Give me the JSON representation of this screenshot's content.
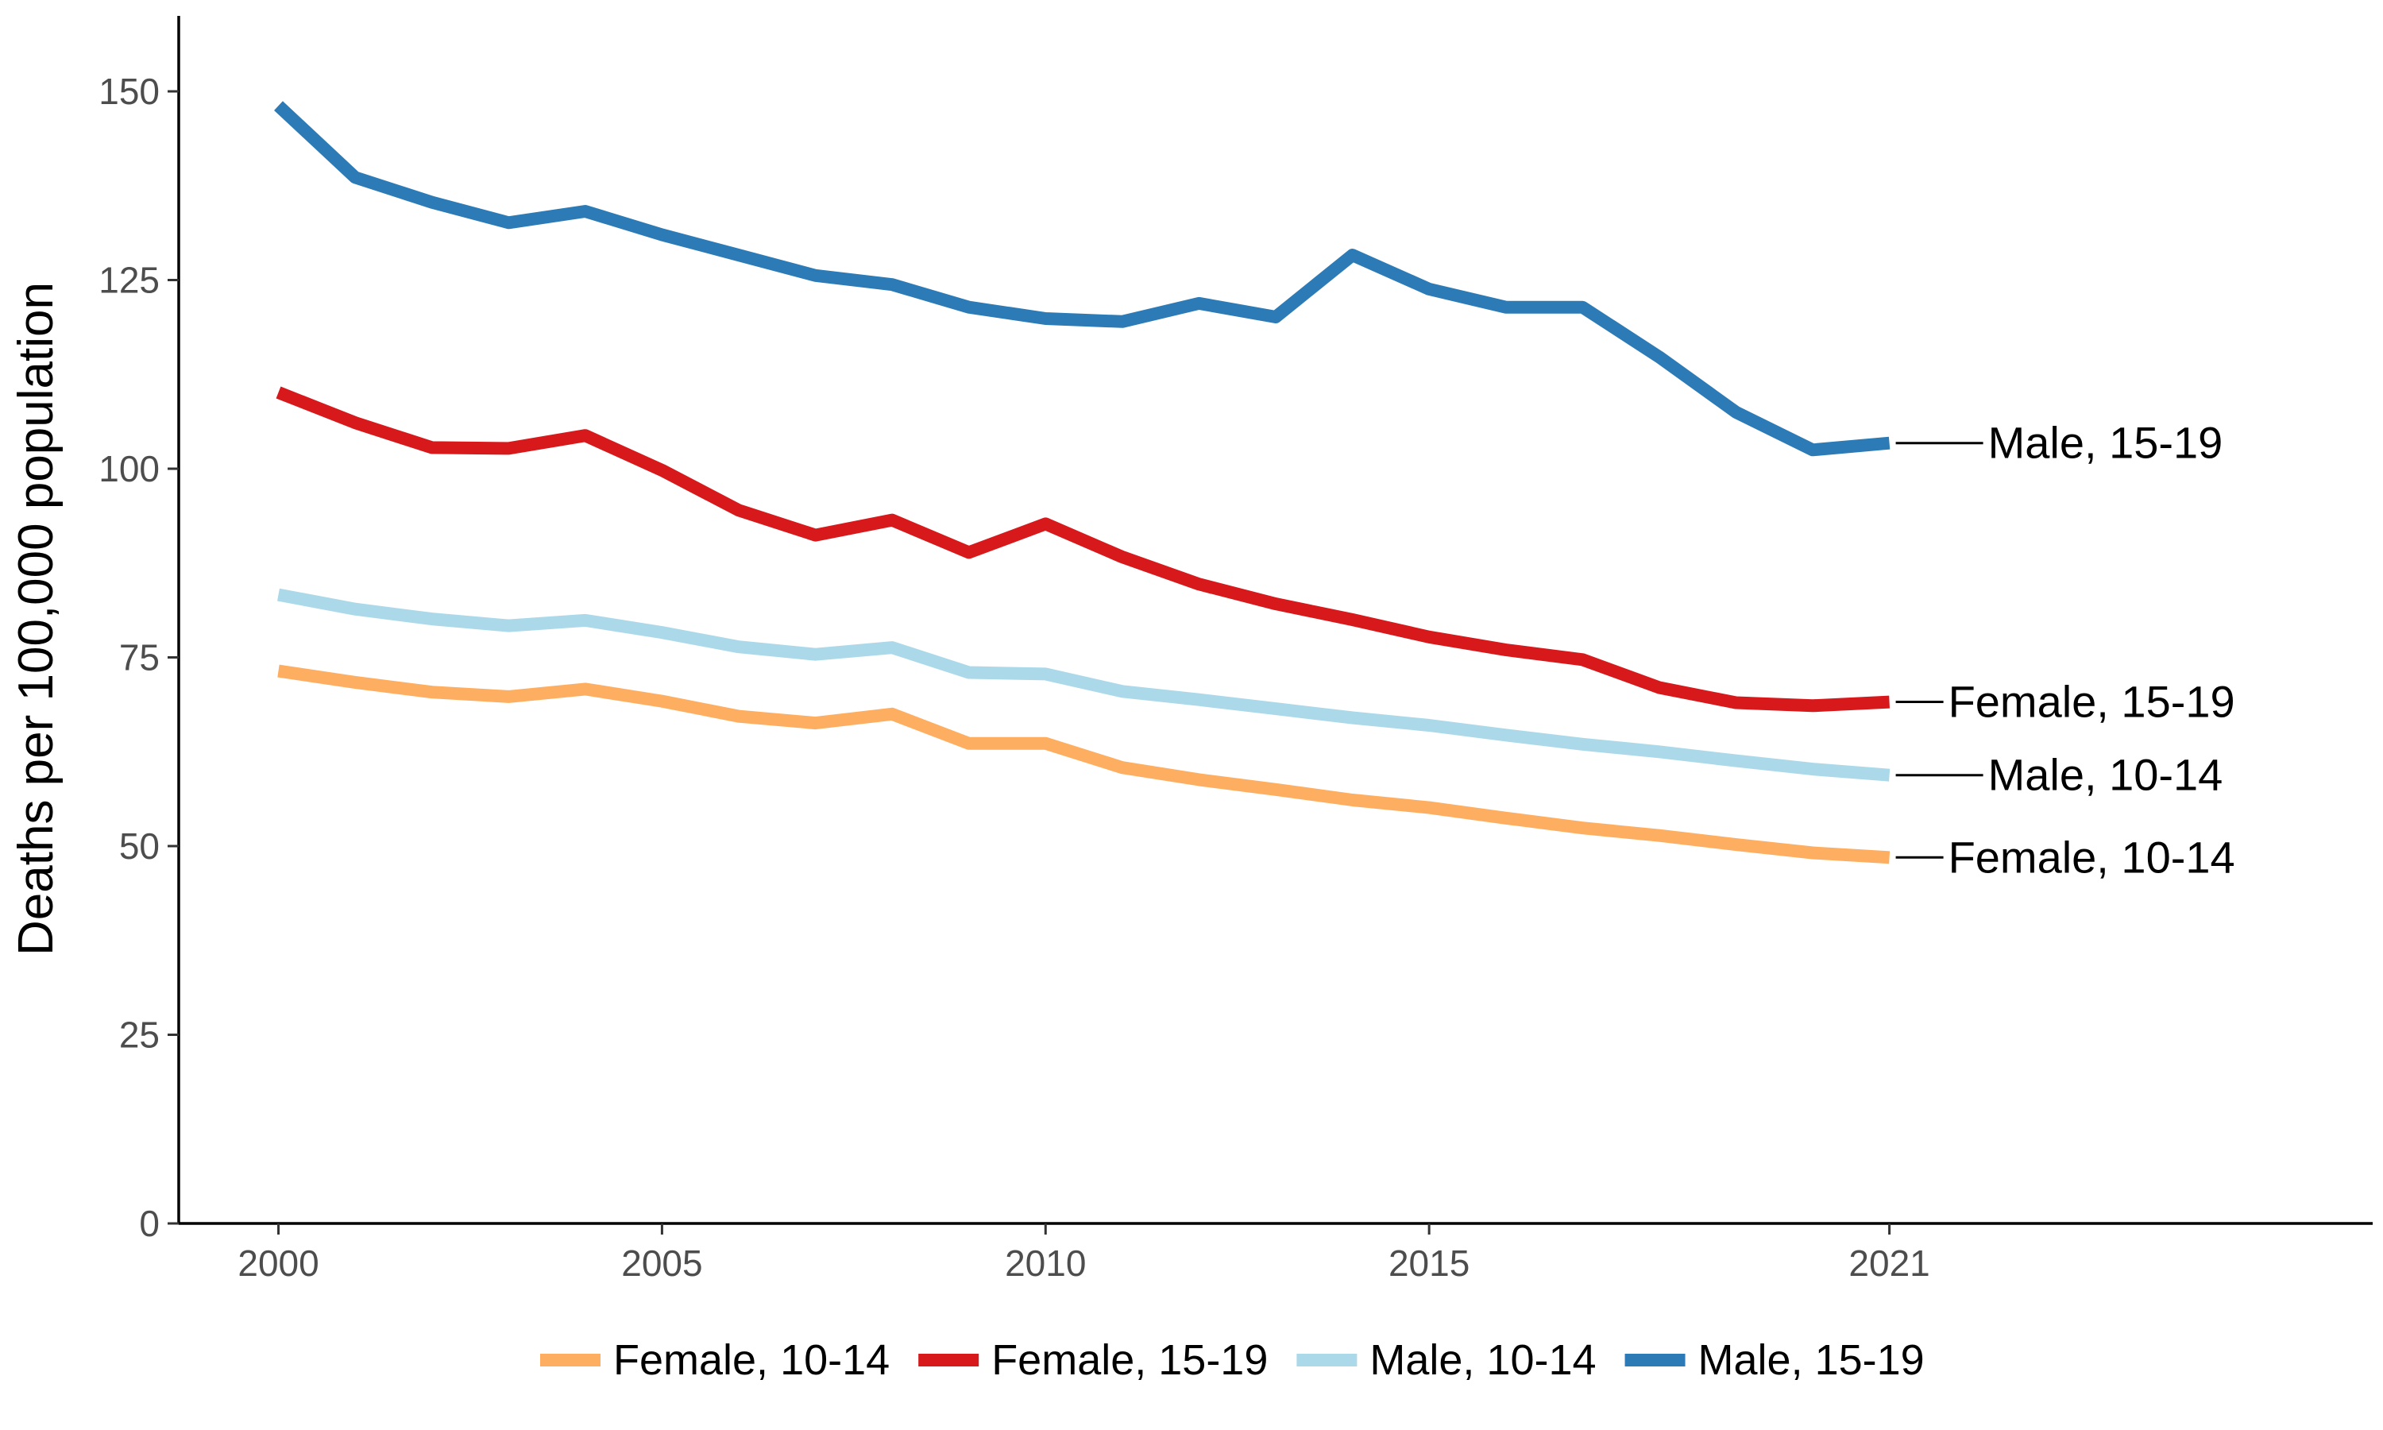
{
  "chart_data": {
    "type": "line",
    "title": "",
    "xlabel": "",
    "ylabel": "Deaths per 100,000 population",
    "xlim": [
      1998.7,
      2027.3
    ],
    "ylim": [
      0,
      160
    ],
    "x_ticks": [
      2000,
      2005,
      2010,
      2015,
      2021
    ],
    "y_ticks": [
      0,
      25,
      50,
      75,
      100,
      125,
      150
    ],
    "grid": false,
    "legend_position": "bottom",
    "x": [
      2000,
      2001,
      2002,
      2003,
      2004,
      2005,
      2006,
      2007,
      2008,
      2009,
      2010,
      2011,
      2012,
      2013,
      2014,
      2015,
      2016,
      2017,
      2018,
      2019,
      2020,
      2021
    ],
    "series": [
      {
        "name": "Female, 10-14",
        "end_label": "Female, 10-14",
        "color": "#fdae61",
        "values": [
          73.2,
          71.7,
          70.4,
          69.8,
          70.8,
          69.2,
          67.2,
          66.3,
          67.5,
          63.6,
          63.6,
          60.4,
          58.8,
          57.5,
          56.1,
          55.1,
          53.7,
          52.4,
          51.4,
          50.2,
          49.1,
          48.5
        ]
      },
      {
        "name": "Female, 15-19",
        "end_label": "Female, 15-19",
        "color": "#d7191c",
        "values": [
          110.1,
          106.1,
          102.8,
          102.7,
          104.4,
          99.8,
          94.5,
          91.2,
          93.2,
          88.9,
          92.7,
          88.3,
          84.7,
          82.1,
          80.0,
          77.7,
          76.0,
          74.7,
          71.0,
          69.0,
          68.6,
          69.1
        ]
      },
      {
        "name": "Male, 10-14",
        "end_label": "Male, 10-14",
        "color": "#abd9e9",
        "values": [
          83.3,
          81.4,
          80.1,
          79.2,
          79.9,
          78.3,
          76.4,
          75.4,
          76.3,
          73.0,
          72.8,
          70.5,
          69.4,
          68.2,
          67.0,
          66.0,
          64.7,
          63.5,
          62.5,
          61.3,
          60.2,
          59.4
        ]
      },
      {
        "name": "Male, 15-19",
        "end_label": "Male, 15-19",
        "color": "#2c7bb6",
        "values": [
          148.1,
          138.6,
          135.3,
          132.6,
          134.1,
          131.0,
          128.3,
          125.6,
          124.4,
          121.4,
          119.9,
          119.5,
          121.9,
          120.1,
          128.3,
          123.8,
          121.4,
          121.4,
          114.8,
          107.5,
          102.5,
          103.4
        ]
      }
    ]
  }
}
